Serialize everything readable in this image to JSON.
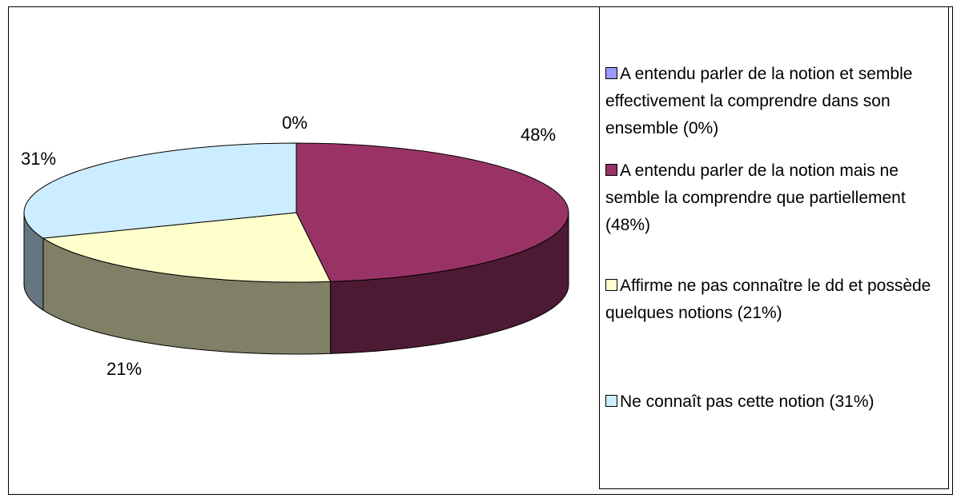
{
  "chart_data": {
    "type": "pie3d",
    "categories": [
      "A entendu parler de la notion et semble effectivement la comprendre dans son ensemble (0%)",
      "A entendu parler de la notion mais ne semble la comprendre que partiellement (48%)",
      "Affirme ne pas connaître le dd et possède quelques notions (21%)",
      "Ne connaît pas cette notion (31%)"
    ],
    "values": [
      0,
      48,
      21,
      31
    ],
    "value_labels": [
      "0%",
      "48%",
      "21%",
      "31%"
    ],
    "colors": [
      "#9999ff",
      "#993366",
      "#ffffcc",
      "#ccecff"
    ],
    "legend": "right"
  }
}
